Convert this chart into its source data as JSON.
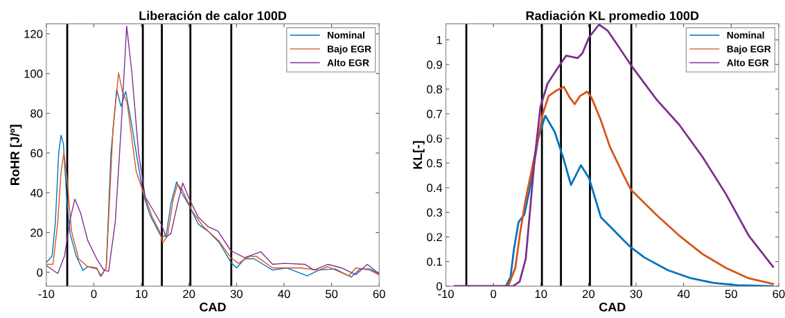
{
  "chart_data": [
    {
      "type": "line",
      "title": "Liberación de calor 100D",
      "xlabel": "CAD",
      "ylabel": "RoHR [J/º]",
      "xlim": [
        -10,
        60
      ],
      "ylim": [
        -7,
        125
      ],
      "xticks": [
        -10,
        0,
        10,
        20,
        30,
        40,
        50,
        60
      ],
      "yticks": [
        0,
        20,
        40,
        60,
        80,
        100,
        120
      ],
      "grid": false,
      "legend": "top right",
      "marker": "none",
      "line_style": "solid",
      "ref_lines": [
        {
          "axis": "x",
          "value": -5.6,
          "color": "#000000"
        },
        {
          "axis": "x",
          "value": 10.3,
          "color": "#000000"
        },
        {
          "axis": "x",
          "value": 14.3,
          "color": "#000000"
        },
        {
          "axis": "x",
          "value": 20.3,
          "color": "#000000"
        },
        {
          "axis": "x",
          "value": 28.9,
          "color": "#000000"
        }
      ],
      "series": [
        {
          "name": "Nominal",
          "color": "#0072bd",
          "x": [
            -10,
            -8.8,
            -8.1,
            -7.4,
            -6.9,
            -6.4,
            -5.7,
            -5.0,
            -3.7,
            -2.3,
            -1.3,
            0.6,
            1.4,
            2.6,
            3.6,
            4.8,
            5.7,
            6.7,
            7.9,
            9.4,
            10.4,
            11.8,
            13.3,
            14.2,
            15.2,
            16.2,
            17.4,
            18.4,
            20.1,
            22.0,
            24.0,
            26.4,
            28.8,
            30.0,
            31.7,
            33.7,
            37.6,
            40.5,
            44.9,
            47.3,
            50.7,
            54.1,
            56.0,
            58.0,
            59.9
          ],
          "values": [
            5,
            8,
            25,
            60,
            69,
            64.5,
            37,
            19.5,
            8,
            1,
            2.8,
            2.2,
            -2.0,
            2.2,
            60,
            92,
            83.5,
            91,
            75,
            53,
            39,
            28.8,
            21.8,
            17.8,
            18.4,
            34.5,
            45.5,
            40.3,
            33.4,
            24.1,
            20.7,
            14.9,
            5.1,
            2.2,
            6.8,
            6.8,
            1.1,
            2.2,
            -1.8,
            1.1,
            1.7,
            -2.4,
            1.7,
            1.7,
            -0.6
          ]
        },
        {
          "name": "Bajo EGR",
          "color": "#d95319",
          "x": [
            -10,
            -8.6,
            -7.6,
            -6.9,
            -6.3,
            -5.7,
            -4.7,
            -3.2,
            -1.3,
            0.6,
            1.6,
            2.6,
            4.0,
            5.2,
            6.0,
            7.0,
            8.9,
            10.4,
            12.3,
            13.8,
            14.5,
            15.5,
            16.7,
            17.6,
            18.6,
            20.6,
            23.0,
            26.4,
            28.8,
            30.4,
            32.7,
            34.2,
            37.6,
            43.4,
            47.3,
            49.2,
            53.6,
            55.1,
            58.0,
            59.9
          ],
          "values": [
            4,
            4,
            25,
            50.7,
            60,
            48.4,
            20.7,
            6.8,
            2.8,
            1.7,
            -1.8,
            2.2,
            71.4,
            100.3,
            91,
            85.3,
            50.7,
            40.3,
            27.6,
            20.7,
            14.9,
            18.4,
            36.8,
            44.3,
            41.5,
            31.1,
            23,
            15.5,
            7.4,
            4.5,
            8,
            8,
            2.2,
            2.2,
            1.1,
            2.8,
            -1.8,
            2.2,
            1.1,
            -1.2
          ]
        },
        {
          "name": "Alto EGR",
          "color": "#7e2f8e",
          "x": [
            -10,
            -7.6,
            -6.2,
            -4.9,
            -4.0,
            -2.8,
            -1.3,
            0.6,
            2.1,
            3.1,
            4.5,
            5.7,
            6.9,
            8.0,
            9.4,
            10.8,
            12.8,
            14.2,
            15.2,
            16.2,
            17.6,
            18.7,
            20.1,
            22.0,
            24.0,
            26.1,
            28.8,
            31.7,
            35.1,
            37.6,
            40.0,
            44.4,
            46.3,
            49.2,
            52.1,
            55.1,
            57.5,
            59.9
          ],
          "values": [
            3.4,
            -0.6,
            8,
            27.6,
            36.8,
            29.9,
            16.1,
            6.8,
            1.1,
            0.5,
            25.3,
            71.4,
            123.9,
            100.3,
            60,
            38,
            29.9,
            24.1,
            17.8,
            19.5,
            34.5,
            44.9,
            36.8,
            27.6,
            23,
            20.7,
            10.9,
            7.4,
            10.3,
            4,
            4.5,
            4,
            1.1,
            4,
            2.2,
            -1.2,
            4,
            -0.6
          ]
        }
      ]
    },
    {
      "type": "line",
      "title": "Radiación KL promedio 100D",
      "xlabel": "CAD",
      "ylabel": "KL[-]",
      "xlim": [
        -10,
        60
      ],
      "ylim": [
        0,
        1.065
      ],
      "xticks": [
        -10,
        0,
        10,
        20,
        30,
        40,
        50,
        60
      ],
      "yticks": [
        0,
        0.1,
        0.2,
        0.3,
        0.4,
        0.5,
        0.6,
        0.7,
        0.8,
        0.9,
        1
      ],
      "grid": false,
      "legend": "top right",
      "marker": "none",
      "line_style": "solid",
      "ref_lines": [
        {
          "axis": "x",
          "value": -5.7,
          "color": "#000000"
        },
        {
          "axis": "x",
          "value": 10.2,
          "color": "#000000"
        },
        {
          "axis": "x",
          "value": 14.2,
          "color": "#000000"
        },
        {
          "axis": "x",
          "value": 20.3,
          "color": "#000000"
        },
        {
          "axis": "x",
          "value": 29.0,
          "color": "#000000"
        }
      ],
      "series": [
        {
          "name": "Nominal",
          "color": "#0072bd",
          "x": [
            -8.1,
            2.6,
            3.6,
            4.3,
            5.3,
            6.5,
            8.0,
            9.4,
            10.9,
            12.9,
            14.8,
            16.3,
            18.4,
            20.1,
            22.6,
            24.5,
            27.4,
            28.9,
            31.8,
            36.7,
            41.6,
            46.4,
            51.3,
            58.8
          ],
          "values": [
            0,
            0,
            0.037,
            0.149,
            0.261,
            0.29,
            0.43,
            0.598,
            0.692,
            0.626,
            0.514,
            0.411,
            0.491,
            0.439,
            0.28,
            0.243,
            0.186,
            0.158,
            0.116,
            0.065,
            0.032,
            0.013,
            0.004,
            0
          ]
        },
        {
          "name": "Bajo EGR",
          "color": "#d95319",
          "x": [
            -8.1,
            3.1,
            4.6,
            5.6,
            6.8,
            8.0,
            9.4,
            10.4,
            11.6,
            13.3,
            14.8,
            16.0,
            17.1,
            18.2,
            19.7,
            20.6,
            22.6,
            24.5,
            27.4,
            28.9,
            34.3,
            39.1,
            44.0,
            48.9,
            53.7,
            58.8
          ],
          "values": [
            0,
            0,
            0.074,
            0.215,
            0.355,
            0.467,
            0.598,
            0.701,
            0.772,
            0.795,
            0.809,
            0.767,
            0.739,
            0.772,
            0.79,
            0.767,
            0.673,
            0.566,
            0.449,
            0.392,
            0.289,
            0.205,
            0.13,
            0.074,
            0.032,
            0.009
          ]
        },
        {
          "name": "Alto EGR",
          "color": "#7e2f8e",
          "x": [
            -8.1,
            4.1,
            5.5,
            6.8,
            7.7,
            8.7,
            9.9,
            11.4,
            13.3,
            15.3,
            17.7,
            18.7,
            20.1,
            22.2,
            24.0,
            26.0,
            28.9,
            34.3,
            39.1,
            44.0,
            48.9,
            53.7,
            58.8
          ],
          "values": [
            0,
            0,
            0.018,
            0.112,
            0.308,
            0.524,
            0.73,
            0.823,
            0.879,
            0.936,
            0.926,
            0.945,
            1.01,
            1.062,
            1.038,
            0.982,
            0.898,
            0.758,
            0.655,
            0.524,
            0.374,
            0.205,
            0.079
          ]
        }
      ]
    }
  ]
}
